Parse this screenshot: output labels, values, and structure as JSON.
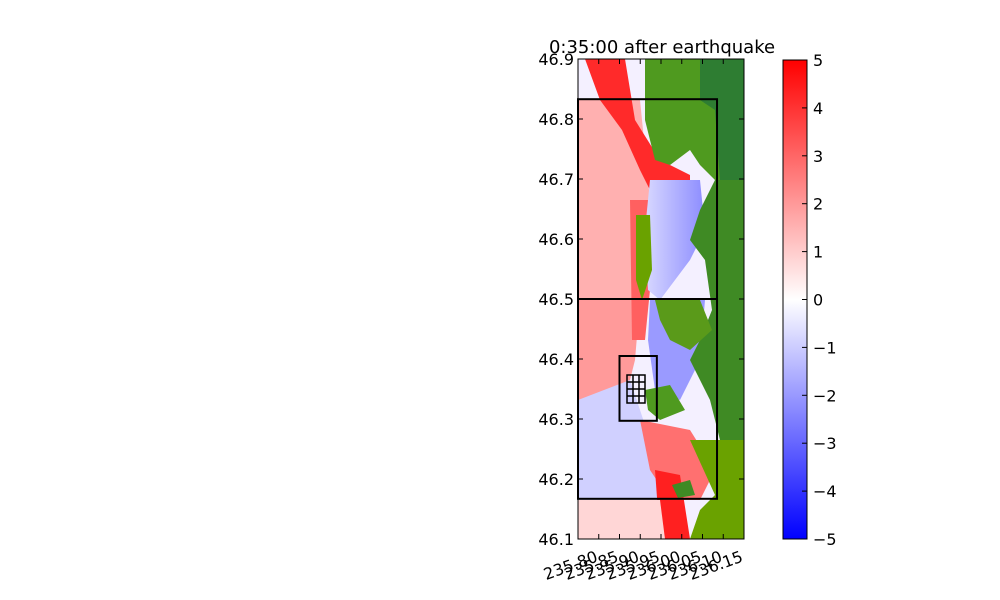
{
  "chart_data": {
    "type": "heatmap",
    "title": "0:35:00 after earthquake",
    "xlabel": "",
    "ylabel": "",
    "xlim": [
      235.75,
      236.15
    ],
    "ylim": [
      46.1,
      46.9
    ],
    "x_ticks": [
      "235.80",
      "235.85",
      "235.90",
      "235.95",
      "236.00",
      "236.05",
      "236.10",
      "236.15"
    ],
    "y_ticks": [
      "46.1",
      "46.2",
      "46.3",
      "46.4",
      "46.5",
      "46.6",
      "46.7",
      "46.8",
      "46.9"
    ],
    "colorbar": {
      "min": -5,
      "max": 5,
      "ticks": [
        "5",
        "4",
        "3",
        "2",
        "1",
        "0",
        "−1",
        "−2",
        "−3",
        "−4",
        "−5"
      ],
      "low_color": "#0000ff",
      "mid_color": "#ffffff",
      "high_color": "#ff0000"
    },
    "land_colors": [
      "#2e7d32",
      "#6aa200"
    ],
    "refinement_boxes": [
      {
        "x0": 235.75,
        "x1": 236.085,
        "y0": 46.5,
        "y1": 46.833
      },
      {
        "x0": 235.75,
        "x1": 236.085,
        "y0": 46.167,
        "y1": 46.5
      },
      {
        "x0": 235.85,
        "x1": 235.94,
        "y0": 46.297,
        "y1": 46.405
      },
      {
        "x0": 235.87,
        "x1": 235.915,
        "y0": 46.327,
        "y1": 46.372
      }
    ]
  }
}
